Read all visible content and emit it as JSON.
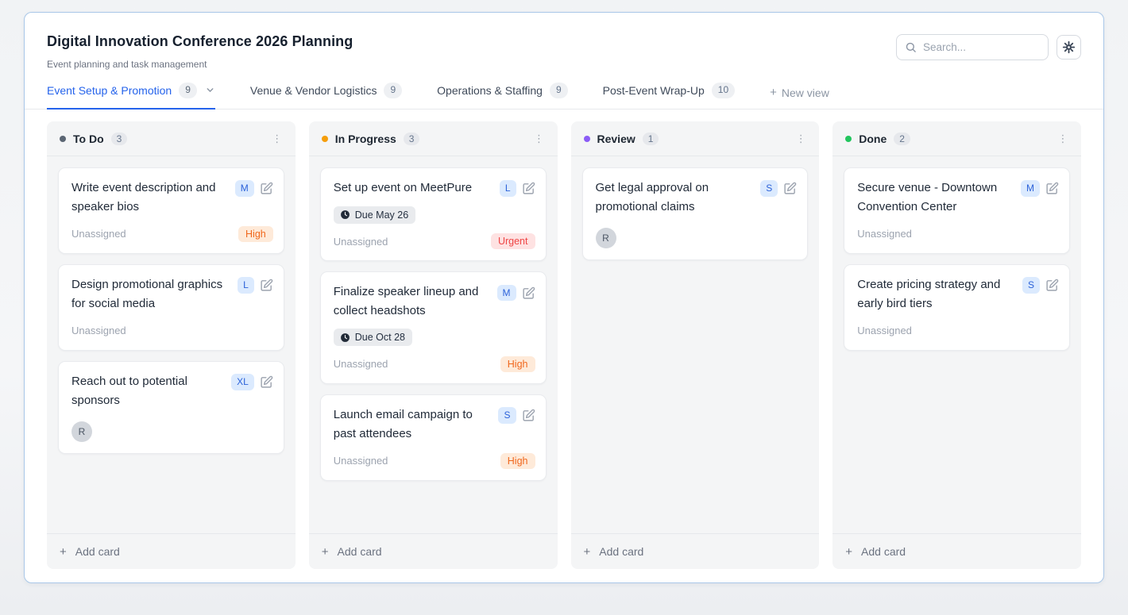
{
  "page": {
    "title": "Digital Innovation Conference 2026 Planning",
    "subtitle": "Event planning and task management"
  },
  "search": {
    "placeholder": "Search..."
  },
  "tabs": [
    {
      "label": "Event Setup & Promotion",
      "count": "9",
      "active": true,
      "chevron": true
    },
    {
      "label": "Venue & Vendor Logistics",
      "count": "9",
      "active": false
    },
    {
      "label": "Operations & Staffing",
      "count": "9",
      "active": false
    },
    {
      "label": "Post-Event Wrap-Up",
      "count": "10",
      "active": false
    }
  ],
  "new_view": {
    "label": "New view",
    "plus": "+"
  },
  "priority_styles": {
    "High": {
      "color": "#f0671c",
      "bg": "#feead9"
    },
    "Urgent": {
      "color": "#ef4444",
      "bg": "#fee2e2"
    }
  },
  "badge_colors": {
    "size_bg": "#dbeafe",
    "size_text": "#2c62d9",
    "accent_blue": "#2563eb"
  },
  "board": {
    "add_card_label": "Add card",
    "add_card_plus": "+",
    "kebab_glyph": "⋮",
    "columns": [
      {
        "name": "To Do",
        "count": "3",
        "dot_color": "#5b6673",
        "cards": [
          {
            "title": "Write event description and speaker bios",
            "size": "M",
            "assignee_text": "Unassigned",
            "priority": "High"
          },
          {
            "title": "Design promotional graphics for social media",
            "size": "L",
            "assignee_text": "Unassigned"
          },
          {
            "title": "Reach out to potential sponsors",
            "size": "XL",
            "avatar": "R"
          }
        ]
      },
      {
        "name": "In Progress",
        "count": "3",
        "dot_color": "#f59e0b",
        "cards": [
          {
            "title": "Set up event on MeetPure",
            "size": "L",
            "due": "Due May 26",
            "assignee_text": "Unassigned",
            "priority": "Urgent"
          },
          {
            "title": "Finalize speaker lineup and collect headshots",
            "size": "M",
            "due": "Due Oct 28",
            "assignee_text": "Unassigned",
            "priority": "High"
          },
          {
            "title": "Launch email campaign to past attendees",
            "size": "S",
            "assignee_text": "Unassigned",
            "priority": "High"
          }
        ]
      },
      {
        "name": "Review",
        "count": "1",
        "dot_color": "#8b5cf6",
        "cards": [
          {
            "title": "Get legal approval on promotional claims",
            "size": "S",
            "avatar": "R"
          }
        ]
      },
      {
        "name": "Done",
        "count": "2",
        "dot_color": "#22c55e",
        "cards": [
          {
            "title": "Secure venue - Downtown Convention Center",
            "size": "M",
            "assignee_text": "Unassigned"
          },
          {
            "title": "Create pricing strategy and early bird tiers",
            "size": "S",
            "assignee_text": "Unassigned"
          }
        ]
      }
    ]
  }
}
